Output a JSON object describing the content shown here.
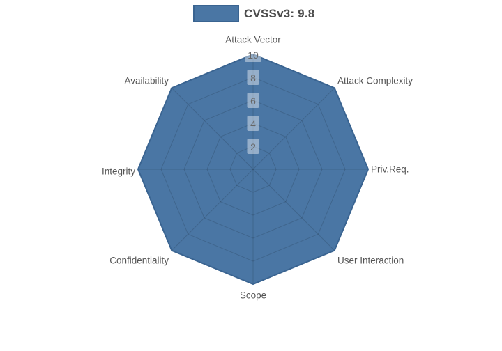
{
  "legend": {
    "label": "CVSSv3: 9.8",
    "swatch_fill": "#4a76a4",
    "swatch_border": "#3a6491"
  },
  "chart_data": {
    "type": "radar",
    "title": "",
    "categories": [
      "Attack Vector",
      "Attack Complexity",
      "Priv.Req.",
      "User Interaction",
      "Scope",
      "Confidentiality",
      "Integrity",
      "Availability"
    ],
    "series": [
      {
        "name": "CVSSv3: 9.8",
        "values": [
          10,
          10,
          10,
          10,
          10,
          10,
          10,
          10
        ]
      }
    ],
    "rmax": 10,
    "tick_values": [
      2,
      4,
      6,
      8,
      10
    ],
    "grid": true,
    "legend_position": "top",
    "colors": {
      "fill": "#4a76a4",
      "stroke": "#3a6491",
      "grid_line": "rgba(0,0,0,0.14)",
      "tick_text": "#666666",
      "tick_backdrop": "rgba(255,255,255,0.42)",
      "label_text": "#555555"
    }
  }
}
